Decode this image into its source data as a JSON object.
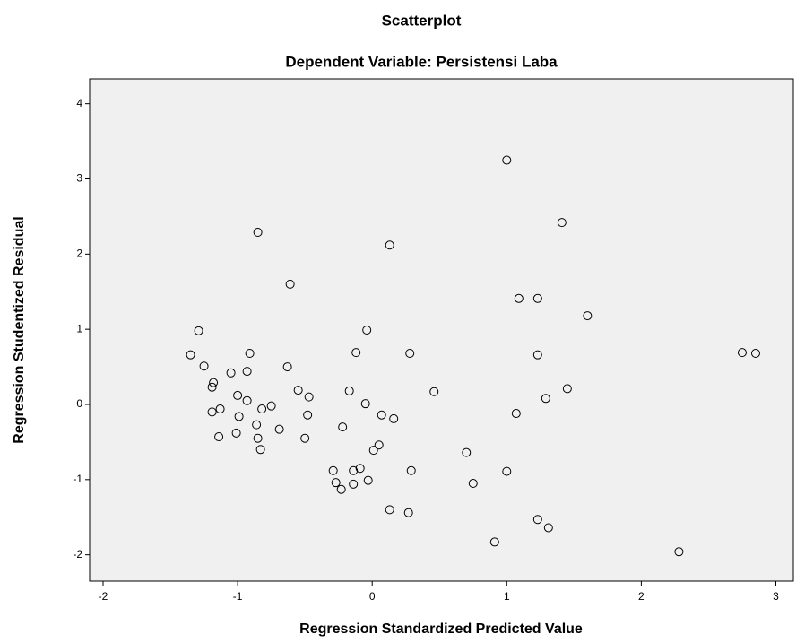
{
  "chart_data": {
    "type": "scatter",
    "title": "Scatterplot",
    "subtitle": "Dependent Variable: Persistensi Laba",
    "x_label": "Regression Standardized Predicted Value",
    "y_label": "Regression Studentized Residual",
    "xlim": [
      -2.1,
      3.13
    ],
    "ylim": [
      -2.35,
      4.33
    ],
    "xticks": [
      -2,
      -1,
      0,
      1,
      2,
      3
    ],
    "yticks": [
      -2,
      -1,
      0,
      1,
      2,
      3,
      4
    ],
    "color": "#000000",
    "x": [
      1.0,
      1.41,
      -0.85,
      0.13,
      -0.61,
      1.09,
      1.23,
      1.6,
      -1.29,
      -0.04,
      -1.35,
      -0.91,
      -0.12,
      0.28,
      1.23,
      2.75,
      2.85,
      -1.25,
      -1.05,
      -0.93,
      -0.63,
      -1.18,
      -1.19,
      -1.13,
      -1.0,
      -0.93,
      -1.19,
      -0.99,
      -0.82,
      -0.75,
      -0.55,
      -0.47,
      -0.48,
      -0.17,
      -0.05,
      0.07,
      0.16,
      0.46,
      -0.86,
      -1.14,
      -1.01,
      -0.85,
      -0.83,
      -0.69,
      -0.5,
      -0.22,
      0.01,
      0.05,
      -0.29,
      -0.27,
      -0.23,
      -0.14,
      -0.09,
      -0.14,
      -0.03,
      0.29,
      0.7,
      0.75,
      1.0,
      0.13,
      0.27,
      1.07,
      1.29,
      1.45,
      1.23,
      1.31,
      0.91,
      2.28
    ],
    "values": [
      3.25,
      2.42,
      2.29,
      2.12,
      1.6,
      1.41,
      1.41,
      1.18,
      0.98,
      0.99,
      0.66,
      0.68,
      0.69,
      0.68,
      0.66,
      0.69,
      0.68,
      0.51,
      0.42,
      0.44,
      0.5,
      0.29,
      0.23,
      -0.06,
      0.12,
      0.05,
      -0.1,
      -0.16,
      -0.06,
      -0.02,
      0.19,
      0.1,
      -0.14,
      0.18,
      0.01,
      -0.14,
      -0.19,
      0.17,
      -0.27,
      -0.43,
      -0.38,
      -0.45,
      -0.6,
      -0.33,
      -0.45,
      -0.3,
      -0.61,
      -0.54,
      -0.88,
      -1.04,
      -1.13,
      -0.88,
      -0.85,
      -1.06,
      -1.01,
      -0.88,
      -0.64,
      -1.05,
      -0.89,
      -1.4,
      -1.44,
      -0.12,
      0.08,
      0.21,
      -1.53,
      -1.64,
      -1.83,
      -1.96
    ]
  }
}
